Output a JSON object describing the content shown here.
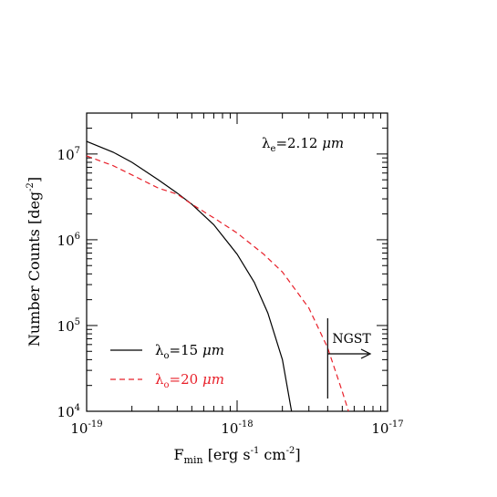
{
  "chart_data": {
    "type": "line",
    "x_scale": "log",
    "y_scale": "log",
    "xlim": [
      1e-19,
      1e-17
    ],
    "ylim": [
      10000,
      30000000
    ],
    "xlabel": "F",
    "xlabel_sub": "min",
    "xlabel_unit": "[erg s",
    "xlabel_unit_exp1": "-1",
    "xlabel_unit_mid": " cm",
    "xlabel_unit_exp2": "-2",
    "xlabel_unit_end": "]",
    "ylabel": "Number Counts [deg",
    "ylabel_exp": "-2",
    "ylabel_end": "]",
    "x_ticks": [
      {
        "base": "10",
        "exp": "-19",
        "value": 1e-19
      },
      {
        "base": "10",
        "exp": "-18",
        "value": 1e-18
      },
      {
        "base": "10",
        "exp": "-17",
        "value": 1e-17
      }
    ],
    "y_ticks": [
      {
        "base": "10",
        "exp": "4",
        "value": 10000
      },
      {
        "base": "10",
        "exp": "5",
        "value": 100000
      },
      {
        "base": "10",
        "exp": "6",
        "value": 1000000
      },
      {
        "base": "10",
        "exp": "7",
        "value": 10000000
      }
    ],
    "annotation": {
      "lambda": "λ",
      "sub": "e",
      "text": "=2.12 ",
      "unit": "μm"
    },
    "marker": {
      "label": "NGST",
      "x": 4e-18
    },
    "series": [
      {
        "name_symbol": "λ",
        "name_sub": "o",
        "name_text": "=15 ",
        "name_unit": "μm",
        "color": "#000000",
        "dash": "none",
        "x": [
          1e-19,
          1.5e-19,
          2e-19,
          3e-19,
          4e-19,
          5e-19,
          7e-19,
          1e-18,
          1.3e-18,
          1.6e-18,
          2e-18,
          2.3e-18
        ],
        "y": [
          14000000,
          10500000,
          8000000,
          5000000,
          3500000,
          2600000,
          1500000,
          680000,
          320000,
          140000,
          40000,
          10000
        ]
      },
      {
        "name_symbol": "λ",
        "name_sub": "o",
        "name_text": "=20 ",
        "name_unit": "μm",
        "color": "#e8202a",
        "dash": "6,4",
        "x": [
          1e-19,
          1.5e-19,
          2e-19,
          3e-19,
          4e-19,
          5e-19,
          7e-19,
          1e-18,
          1.5e-18,
          2e-18,
          3e-18,
          4e-18,
          5e-18,
          5.5e-18
        ],
        "y": [
          9500000,
          7300000,
          5700000,
          4000000,
          3400000,
          2600000,
          1800000,
          1200000,
          680000,
          420000,
          160000,
          55000,
          17000,
          10000
        ]
      }
    ]
  }
}
